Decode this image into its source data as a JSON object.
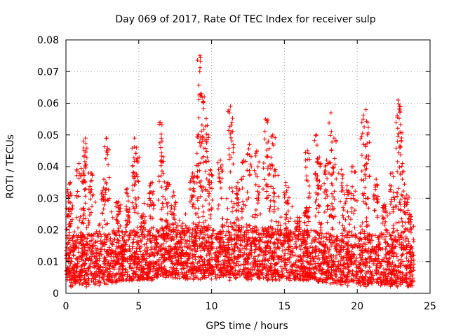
{
  "chart_data": {
    "type": "scatter",
    "title": "Day 069 of 2017, Rate Of TEC Index for receiver sulp",
    "xlabel": "GPS time / hours",
    "ylabel": "ROTI / TECUs",
    "xlim": [
      0,
      25
    ],
    "ylim": [
      0,
      0.08
    ],
    "xticks": [
      0,
      5,
      10,
      15,
      20,
      25
    ],
    "yticks": [
      0,
      0.01,
      0.02,
      0.03,
      0.04,
      0.05,
      0.06,
      0.07,
      0.08
    ],
    "ytick_labels": [
      "0",
      "0.01",
      "0.02",
      "0.03",
      "0.04",
      "0.05",
      "0.06",
      "0.07",
      "0.08"
    ],
    "grid": true,
    "marker": "+",
    "color": "#ff0000",
    "x_data_range": [
      0,
      23.9
    ],
    "dense_band": [
      0.004,
      0.02
    ],
    "spikes": [
      {
        "x": 0.1,
        "y": 0.032
      },
      {
        "x": 0.3,
        "y": 0.035
      },
      {
        "x": 0.9,
        "y": 0.041
      },
      {
        "x": 1.2,
        "y": 0.038
      },
      {
        "x": 1.35,
        "y": 0.049
      },
      {
        "x": 1.7,
        "y": 0.038
      },
      {
        "x": 2.6,
        "y": 0.036
      },
      {
        "x": 2.8,
        "y": 0.049
      },
      {
        "x": 3.6,
        "y": 0.029
      },
      {
        "x": 4.2,
        "y": 0.033
      },
      {
        "x": 4.7,
        "y": 0.049
      },
      {
        "x": 4.85,
        "y": 0.046
      },
      {
        "x": 5.3,
        "y": 0.025
      },
      {
        "x": 5.9,
        "y": 0.035
      },
      {
        "x": 6.5,
        "y": 0.054
      },
      {
        "x": 6.6,
        "y": 0.048
      },
      {
        "x": 7.0,
        "y": 0.035
      },
      {
        "x": 7.4,
        "y": 0.032
      },
      {
        "x": 8.7,
        "y": 0.038
      },
      {
        "x": 9.1,
        "y": 0.05
      },
      {
        "x": 9.2,
        "y": 0.075
      },
      {
        "x": 9.3,
        "y": 0.063
      },
      {
        "x": 9.5,
        "y": 0.062
      },
      {
        "x": 9.7,
        "y": 0.053
      },
      {
        "x": 9.9,
        "y": 0.039
      },
      {
        "x": 10.6,
        "y": 0.042
      },
      {
        "x": 11.3,
        "y": 0.059
      },
      {
        "x": 11.4,
        "y": 0.054
      },
      {
        "x": 11.8,
        "y": 0.035
      },
      {
        "x": 12.2,
        "y": 0.042
      },
      {
        "x": 12.6,
        "y": 0.047
      },
      {
        "x": 13.1,
        "y": 0.045
      },
      {
        "x": 13.7,
        "y": 0.055
      },
      {
        "x": 13.9,
        "y": 0.048
      },
      {
        "x": 14.2,
        "y": 0.05
      },
      {
        "x": 14.4,
        "y": 0.039
      },
      {
        "x": 15.1,
        "y": 0.035
      },
      {
        "x": 15.9,
        "y": 0.024
      },
      {
        "x": 16.5,
        "y": 0.027
      },
      {
        "x": 16.6,
        "y": 0.045
      },
      {
        "x": 17.2,
        "y": 0.05
      },
      {
        "x": 17.4,
        "y": 0.043
      },
      {
        "x": 17.9,
        "y": 0.042
      },
      {
        "x": 18.2,
        "y": 0.057
      },
      {
        "x": 18.4,
        "y": 0.049
      },
      {
        "x": 18.9,
        "y": 0.039
      },
      {
        "x": 19.3,
        "y": 0.034
      },
      {
        "x": 19.7,
        "y": 0.04
      },
      {
        "x": 20.4,
        "y": 0.055
      },
      {
        "x": 20.6,
        "y": 0.058
      },
      {
        "x": 20.7,
        "y": 0.05
      },
      {
        "x": 21.3,
        "y": 0.036
      },
      {
        "x": 21.9,
        "y": 0.028
      },
      {
        "x": 22.4,
        "y": 0.038
      },
      {
        "x": 22.8,
        "y": 0.061
      },
      {
        "x": 22.9,
        "y": 0.059
      },
      {
        "x": 23.1,
        "y": 0.041
      },
      {
        "x": 23.4,
        "y": 0.031
      },
      {
        "x": 23.6,
        "y": 0.025
      }
    ]
  }
}
